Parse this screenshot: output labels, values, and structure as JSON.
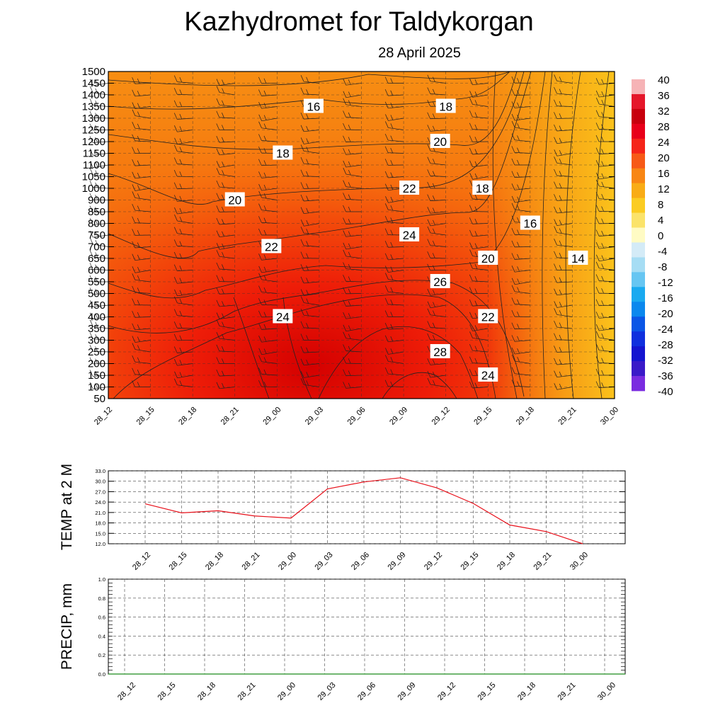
{
  "page": {
    "title": "Kazhydromet  for Taldykorgan",
    "subtitle": "28 April 2025"
  },
  "colors": {
    "background": "#ffffff",
    "temp_line": "#e8101a",
    "precip_line": "#1a8a1a",
    "contour_line": "#222222",
    "barb": "#222222"
  },
  "chart_data": [
    {
      "type": "heatmap",
      "name": "temperature-cross-section",
      "title": "",
      "xlabel": "",
      "ylabel": "",
      "x_ticks": [
        "28_12",
        "28_15",
        "28_18",
        "28_21",
        "29_00",
        "29_03",
        "29_06",
        "29_09",
        "29_12",
        "29_15",
        "29_18",
        "29_21",
        "30_00"
      ],
      "y_ticks": [
        50,
        100,
        150,
        200,
        250,
        300,
        350,
        400,
        450,
        500,
        550,
        600,
        650,
        700,
        750,
        800,
        850,
        900,
        1000,
        1050,
        1100,
        1150,
        1200,
        1250,
        1300,
        1350,
        1400,
        1450,
        1500
      ],
      "grid": true,
      "colorbar": {
        "position": "right",
        "labels": [
          40,
          36,
          32,
          28,
          24,
          20,
          16,
          12,
          8,
          4,
          0,
          -4,
          -8,
          -12,
          -16,
          -20,
          -24,
          -28,
          -32,
          -36,
          -40
        ]
      },
      "contour_labels": [
        {
          "value": 16,
          "near_x": "29_03",
          "near_y": 1350
        },
        {
          "value": 18,
          "near_x": "29_12",
          "near_y": 1350
        },
        {
          "value": 18,
          "near_x": "29_00",
          "near_y": 1150
        },
        {
          "value": 20,
          "near_x": "29_12",
          "near_y": 1200
        },
        {
          "value": 20,
          "near_x": "28_21",
          "near_y": 900
        },
        {
          "value": 22,
          "near_x": "29_09",
          "near_y": 1000
        },
        {
          "value": 18,
          "near_x": "29_15",
          "near_y": 1000
        },
        {
          "value": 16,
          "near_x": "29_18",
          "near_y": 800
        },
        {
          "value": 24,
          "near_x": "29_09",
          "near_y": 750
        },
        {
          "value": 22,
          "near_x": "29_00",
          "near_y": 700
        },
        {
          "value": 20,
          "near_x": "29_15",
          "near_y": 650
        },
        {
          "value": 14,
          "near_x": "29_21",
          "near_y": 650
        },
        {
          "value": 26,
          "near_x": "29_12",
          "near_y": 550
        },
        {
          "value": 22,
          "near_x": "29_15",
          "near_y": 400
        },
        {
          "value": 24,
          "near_x": "29_00",
          "near_y": 400
        },
        {
          "value": 28,
          "near_x": "29_12",
          "near_y": 250
        },
        {
          "value": 24,
          "near_x": "29_15",
          "near_y": 150
        }
      ]
    },
    {
      "type": "line",
      "name": "temp-2m",
      "title": "",
      "xlabel": "",
      "ylabel": "TEMP at 2 M",
      "categories": [
        "28_12",
        "28_15",
        "28_18",
        "28_21",
        "29_00",
        "29_03",
        "29_06",
        "29_09",
        "29_12",
        "29_15",
        "29_18",
        "29_21",
        "30_00"
      ],
      "values": [
        23.5,
        20.9,
        21.5,
        20.0,
        19.4,
        27.8,
        29.8,
        31.0,
        28.1,
        23.6,
        17.4,
        15.5,
        12.0
      ],
      "ylim": [
        12.0,
        33.0
      ],
      "y_ticks": [
        "33.0",
        "30.0",
        "27.0",
        "24.0",
        "21.0",
        "18.0",
        "15.0",
        "12.0"
      ],
      "grid": true
    },
    {
      "type": "line",
      "name": "precip",
      "title": "",
      "xlabel": "",
      "ylabel": "PRECIP, mm",
      "categories": [
        "28_12",
        "28_15",
        "28_18",
        "28_21",
        "29_00",
        "29_03",
        "29_06",
        "29_09",
        "29_12",
        "29_15",
        "29_18",
        "29_21",
        "30_00"
      ],
      "values": [
        0,
        0,
        0,
        0,
        0,
        0,
        0,
        0,
        0,
        0,
        0,
        0,
        0
      ],
      "ylim": [
        0.0,
        1.0
      ],
      "y_ticks": [
        "1.0",
        "0.8",
        "0.6",
        "0.4",
        "0.2",
        "0.0"
      ],
      "grid": true
    }
  ]
}
